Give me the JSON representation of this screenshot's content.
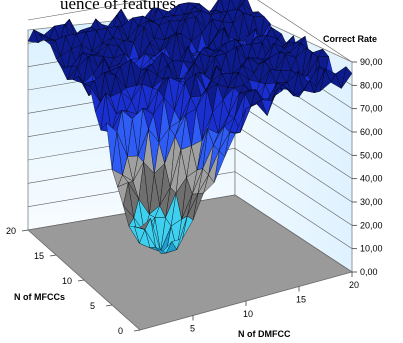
{
  "header_fragment": "uence of features",
  "chart_data": {
    "type": "surface",
    "title": "Correct Rate",
    "xlabel": "N of DMFCC",
    "ylabel": "N of MFCCs",
    "x_ticks": [
      "5",
      "10",
      "15",
      "20"
    ],
    "y_ticks": [
      "0",
      "5",
      "10",
      "15",
      "20"
    ],
    "z_ticks": [
      "0,00",
      "10,00",
      "20,00",
      "30,00",
      "40,00",
      "50,00",
      "60,00",
      "70,00",
      "80,00",
      "90,00"
    ],
    "xlim": [
      0,
      20
    ],
    "ylim": [
      0,
      20
    ],
    "zlim": [
      0,
      90
    ],
    "grid": true,
    "legend": "none",
    "colors": {
      "band_80_90": "#0d1b8c",
      "band_70_80": "#1a2fd0",
      "band_60_70": "#2f5cf5",
      "band_50_60": "#a0a0a0",
      "band_40_50": "#6f6f6f",
      "band_30_40": "#3fd0f0",
      "band_20_30": "#1e9ed0",
      "back_wall": "#e8f6ff",
      "floor": "#9a9a9a"
    },
    "surface_summary": {
      "min_correct_rate_approx": 25,
      "max_correct_rate_approx": 88,
      "low_region": "small N of MFCCs and small N of DMFCC",
      "high_region": "large N of MFCCs and large N of DMFCC"
    }
  }
}
